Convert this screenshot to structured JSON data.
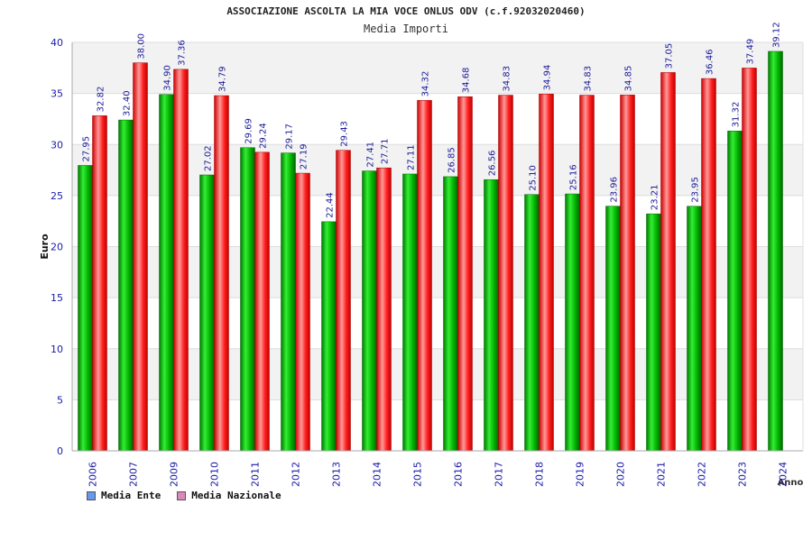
{
  "chart_data": {
    "type": "bar",
    "title": "ASSOCIAZIONE ASCOLTA LA MIA VOCE ONLUS ODV (c.f.92032020460)",
    "subtitle": "Media Importi",
    "ylabel": "Euro",
    "xlabel": "Anno",
    "ylim": [
      0,
      40
    ],
    "yticks": [
      0,
      5,
      10,
      15,
      20,
      25,
      30,
      35,
      40
    ],
    "grid": true,
    "legend_position": "bottom-left",
    "categories": [
      "2006",
      "2007",
      "2009",
      "2010",
      "2011",
      "2012",
      "2013",
      "2014",
      "2015",
      "2016",
      "2017",
      "2018",
      "2019",
      "2020",
      "2021",
      "2022",
      "2023",
      "2024"
    ],
    "series": [
      {
        "name": "Media Ente",
        "color": "#00aa00",
        "legend_color": "#6699ee",
        "values": [
          27.95,
          32.4,
          34.9,
          27.02,
          29.69,
          29.17,
          22.44,
          27.41,
          27.11,
          26.85,
          26.56,
          25.1,
          25.16,
          23.96,
          23.21,
          23.95,
          31.32,
          39.12
        ],
        "labels": [
          "27.95",
          "32.40",
          "34.90",
          "27.02",
          "29.69",
          "29.17",
          "22.44",
          "27.41",
          "27.11",
          "26.85",
          "26.56",
          "25.10",
          "25.16",
          "23.96",
          "23.21",
          "23.95",
          "31.32",
          "39.12"
        ]
      },
      {
        "name": "Media Nazionale",
        "color": "#ee1111",
        "legend_color": "#dd88bb",
        "values": [
          32.82,
          38.0,
          37.36,
          34.79,
          29.24,
          27.19,
          29.43,
          27.71,
          34.32,
          34.68,
          34.83,
          34.94,
          34.83,
          34.85,
          37.05,
          36.46,
          37.49,
          null
        ],
        "labels": [
          "32.82",
          "38.00",
          "37.36",
          "34.79",
          "29.24",
          "27.19",
          "29.43",
          "27.71",
          "34.32",
          "34.68",
          "34.83",
          "34.94",
          "34.83",
          "34.85",
          "37.05",
          "36.46",
          "37.49",
          ""
        ]
      }
    ]
  }
}
